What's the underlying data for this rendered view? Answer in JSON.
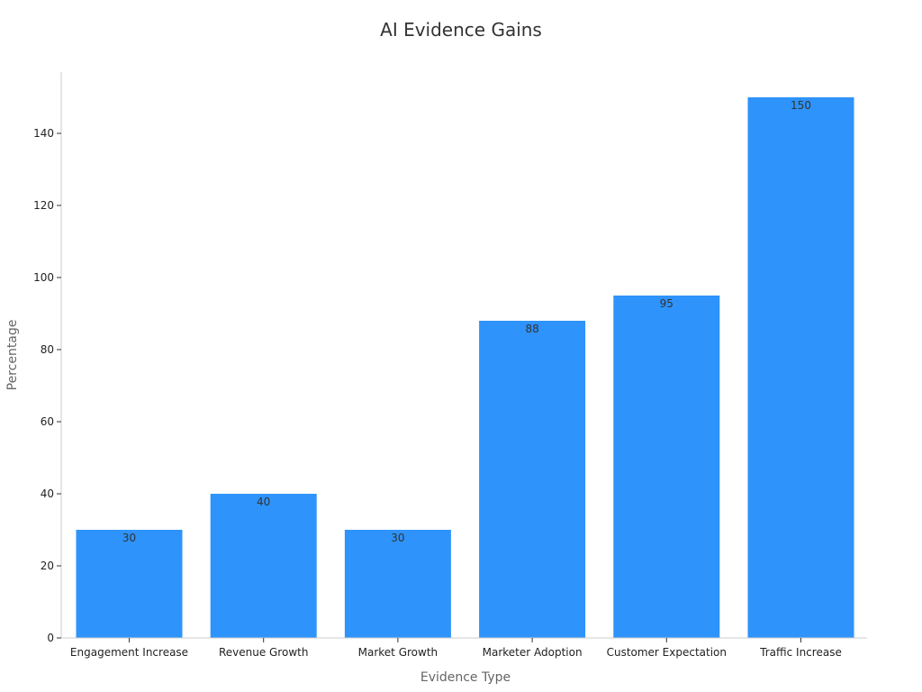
{
  "chart_data": {
    "type": "bar",
    "title": "AI Evidence Gains",
    "xlabel": "Evidence Type",
    "ylabel": "Percentage",
    "categories": [
      "Engagement Increase",
      "Revenue Growth",
      "Market Growth",
      "Marketer Adoption",
      "Customer Expectation",
      "Traffic Increase"
    ],
    "values": [
      30,
      40,
      30,
      88,
      95,
      150
    ],
    "ylim": [
      0,
      157
    ],
    "yticks": [
      0,
      20,
      40,
      60,
      80,
      100,
      120,
      140
    ],
    "bar_color": "#2e93fa",
    "grid": false,
    "legend": "none"
  }
}
